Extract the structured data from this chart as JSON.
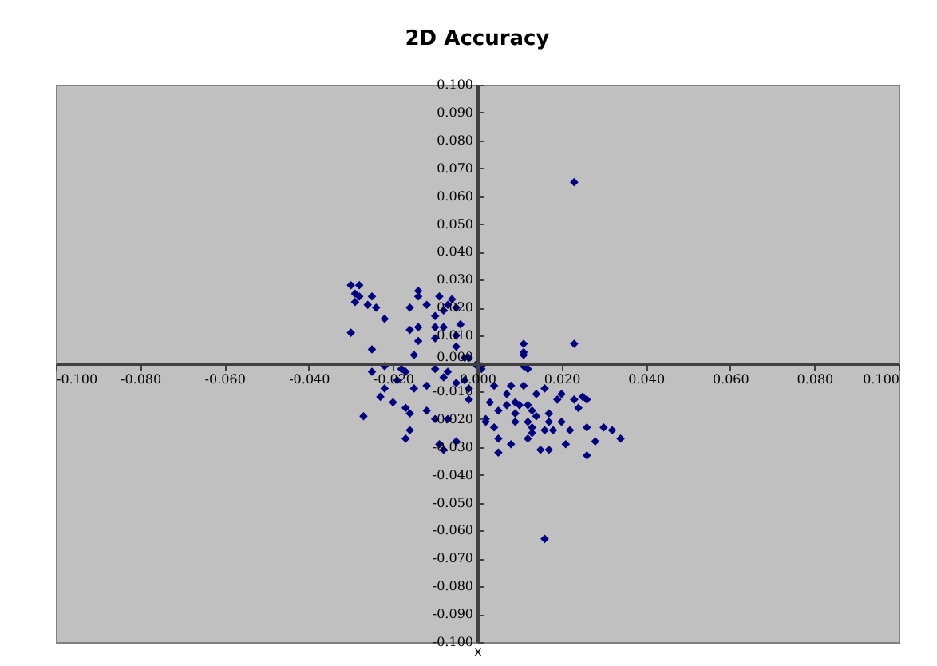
{
  "chart_data": {
    "type": "scatter",
    "title": "2D Accuracy",
    "xlabel": "x",
    "color": "#000080",
    "marker": "diamond",
    "grid": false,
    "xlim": [
      -0.1,
      0.1
    ],
    "xticks": [
      {
        "value": -0.1,
        "label": "-0.100"
      },
      {
        "value": -0.08,
        "label": "-0.080"
      },
      {
        "value": -0.06,
        "label": "-0.060"
      },
      {
        "value": -0.04,
        "label": "-0.040"
      },
      {
        "value": -0.02,
        "label": "-0.020"
      },
      {
        "value": 0,
        "label": "0.000"
      },
      {
        "value": 0.02,
        "label": "0.020"
      },
      {
        "value": 0.04,
        "label": "0.040"
      },
      {
        "value": 0.06,
        "label": "0.060"
      },
      {
        "value": 0.08,
        "label": "0.080"
      },
      {
        "value": 0.1,
        "label": "0.100"
      }
    ],
    "ylim": [
      -0.1,
      0.1
    ],
    "yticks": [
      {
        "value": -0.1,
        "label": "-0.100"
      },
      {
        "value": -0.09,
        "label": "-0.090"
      },
      {
        "value": -0.08,
        "label": "-0.080"
      },
      {
        "value": -0.07,
        "label": "-0.070"
      },
      {
        "value": -0.06,
        "label": "-0.060"
      },
      {
        "value": -0.05,
        "label": "-0.050"
      },
      {
        "value": -0.04,
        "label": "-0.040"
      },
      {
        "value": -0.03,
        "label": "-0.030"
      },
      {
        "value": -0.02,
        "label": "-0.020"
      },
      {
        "value": -0.01,
        "label": "-0.010"
      },
      {
        "value": 0,
        "label": "0.000"
      },
      {
        "value": 0.01,
        "label": "0.010"
      },
      {
        "value": 0.02,
        "label": "0.020"
      },
      {
        "value": 0.03,
        "label": "0.030"
      },
      {
        "value": 0.04,
        "label": "0.040"
      },
      {
        "value": 0.05,
        "label": "0.050"
      },
      {
        "value": 0.06,
        "label": "0.060"
      },
      {
        "value": 0.07,
        "label": "0.070"
      },
      {
        "value": 0.08,
        "label": "0.080"
      },
      {
        "value": 0.09,
        "label": "0.090"
      },
      {
        "value": 0.1,
        "label": "0.100"
      }
    ],
    "x": [
      0.023,
      0.016,
      0.023,
      -0.03,
      -0.028,
      -0.029,
      -0.029,
      -0.028,
      -0.025,
      -0.026,
      -0.024,
      -0.022,
      -0.03,
      -0.025,
      -0.025,
      -0.022,
      -0.023,
      -0.022,
      -0.027,
      -0.014,
      -0.014,
      -0.009,
      -0.006,
      -0.016,
      -0.012,
      -0.008,
      -0.007,
      -0.005,
      -0.01,
      -0.016,
      -0.014,
      -0.01,
      -0.008,
      -0.004,
      -0.014,
      -0.01,
      -0.005,
      -0.005,
      -0.003,
      -0.002,
      0.0,
      0.001,
      -0.015,
      -0.018,
      -0.017,
      -0.019,
      -0.015,
      -0.012,
      -0.01,
      -0.007,
      -0.008,
      -0.005,
      -0.003,
      -0.002,
      -0.02,
      -0.017,
      -0.016,
      -0.012,
      -0.01,
      -0.007,
      -0.016,
      -0.017,
      -0.009,
      -0.005,
      -0.008,
      0.011,
      0.011,
      0.011,
      0.011,
      0.012,
      0.0,
      0.001,
      0.004,
      0.008,
      0.011,
      0.007,
      0.009,
      0.01,
      0.007,
      0.012,
      0.014,
      0.016,
      0.02,
      0.019,
      0.023,
      0.025,
      0.026,
      0.024,
      0.009,
      0.013,
      0.014,
      0.017,
      0.017,
      0.02,
      0.012,
      0.009,
      0.005,
      0.003,
      -0.002,
      0.002,
      0.002,
      0.004,
      0.013,
      0.016,
      0.018,
      0.022,
      0.026,
      0.03,
      0.032,
      0.034,
      0.005,
      0.008,
      0.012,
      0.015,
      0.017,
      0.021,
      0.028,
      0.026,
      0.005,
      0.013
    ],
    "values": [
      0.065,
      -0.063,
      0.007,
      0.028,
      0.028,
      0.025,
      0.022,
      0.024,
      0.024,
      0.021,
      0.02,
      0.016,
      0.011,
      0.005,
      -0.003,
      -0.001,
      -0.012,
      -0.009,
      -0.019,
      0.026,
      0.024,
      0.024,
      0.023,
      0.02,
      0.021,
      0.019,
      0.021,
      0.02,
      0.017,
      0.012,
      0.013,
      0.013,
      0.013,
      0.014,
      0.008,
      0.009,
      0.01,
      0.006,
      0.002,
      0.002,
      0.0,
      -0.001,
      0.003,
      -0.002,
      -0.003,
      -0.006,
      -0.009,
      -0.008,
      -0.002,
      -0.003,
      -0.005,
      -0.007,
      -0.006,
      -0.009,
      -0.014,
      -0.016,
      -0.018,
      -0.017,
      -0.02,
      -0.02,
      -0.024,
      -0.027,
      -0.029,
      -0.028,
      -0.031,
      0.007,
      0.003,
      0.004,
      -0.001,
      -0.002,
      -0.001,
      -0.002,
      -0.008,
      -0.008,
      -0.008,
      -0.011,
      -0.014,
      -0.015,
      -0.015,
      -0.015,
      -0.011,
      -0.009,
      -0.011,
      -0.013,
      -0.013,
      -0.012,
      -0.013,
      -0.016,
      -0.018,
      -0.017,
      -0.019,
      -0.018,
      -0.021,
      -0.021,
      -0.021,
      -0.021,
      -0.017,
      -0.014,
      -0.013,
      -0.02,
      -0.021,
      -0.023,
      -0.023,
      -0.024,
      -0.024,
      -0.024,
      -0.023,
      -0.023,
      -0.024,
      -0.027,
      -0.027,
      -0.029,
      -0.027,
      -0.031,
      -0.031,
      -0.029,
      -0.028,
      -0.033,
      -0.032,
      -0.025
    ]
  }
}
